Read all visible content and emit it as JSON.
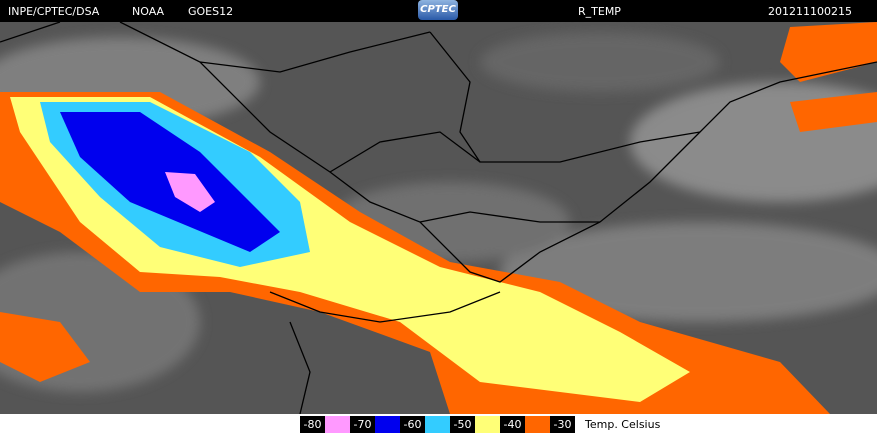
{
  "header": {
    "source": "INPE/CPTEC/DSA",
    "agency": "NOAA",
    "satellite": "GOES12",
    "logo": "CPTEC",
    "product": "R_TEMP",
    "timestamp": "201211100215"
  },
  "legend": {
    "items": [
      {
        "label": "-80",
        "color": "#ff99ff"
      },
      {
        "label": "-70",
        "color": "#0000ee"
      },
      {
        "label": "-60",
        "color": "#33ccff"
      },
      {
        "label": "-50",
        "color": "#ffff77"
      },
      {
        "label": "-40",
        "color": "#ff6600"
      },
      {
        "label": "-30",
        "color": null
      }
    ],
    "caption": "Temp. Celsius"
  }
}
